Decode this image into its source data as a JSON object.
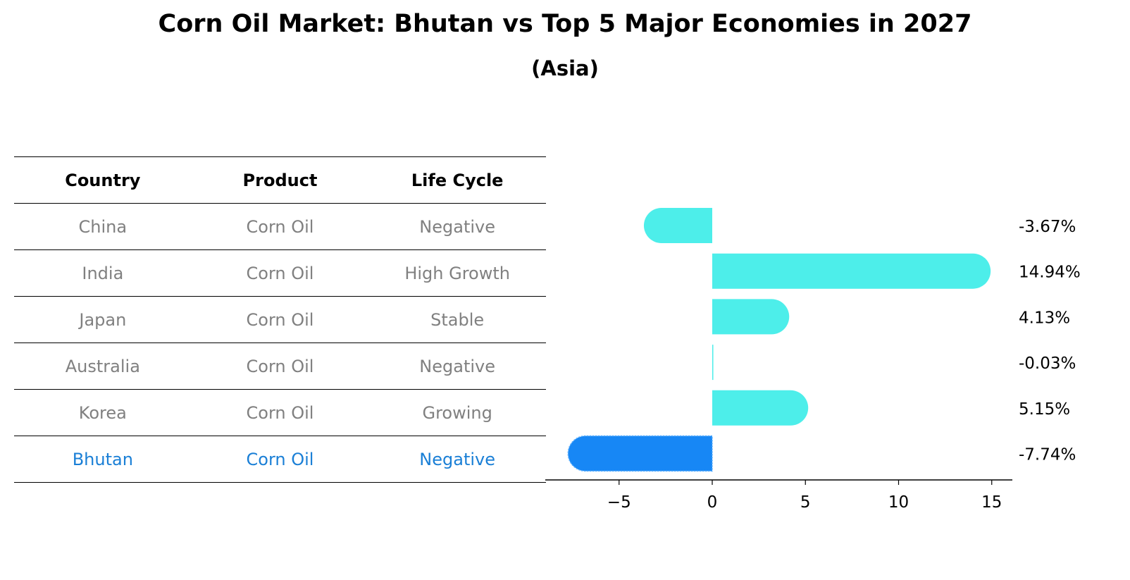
{
  "title": "Corn Oil Market: Bhutan vs Top 5 Major Economies in 2027",
  "subtitle": "(Asia)",
  "table": {
    "headers": [
      "Country",
      "Product",
      "Life Cycle"
    ],
    "rows": [
      [
        "China",
        "Corn Oil",
        "Negative"
      ],
      [
        "India",
        "Corn Oil",
        "High Growth"
      ],
      [
        "Japan",
        "Corn Oil",
        "Stable"
      ],
      [
        "Australia",
        "Corn Oil",
        "Negative"
      ],
      [
        "Korea",
        "Corn Oil",
        "Growing"
      ],
      [
        "Bhutan",
        "Corn Oil",
        "Negative"
      ]
    ],
    "highlight_row": 5
  },
  "chart_data": {
    "type": "bar",
    "orientation": "horizontal",
    "categories": [
      "China",
      "India",
      "Japan",
      "Australia",
      "Korea",
      "Bhutan"
    ],
    "values": [
      -3.67,
      14.94,
      4.13,
      -0.03,
      5.15,
      -7.74
    ],
    "value_labels": [
      "-3.67%",
      "14.94%",
      "4.13%",
      "-0.03%",
      "5.15%",
      "-7.74%"
    ],
    "xlim": [
      -8.8,
      16.3
    ],
    "xticks": [
      -5,
      0,
      5,
      10,
      15
    ],
    "xtick_labels": [
      "−5",
      "0",
      "5",
      "10",
      "15"
    ],
    "highlight_index": 5,
    "colors": {
      "default": "#4deeea",
      "highlight": "#1787f5"
    },
    "grid": false
  }
}
